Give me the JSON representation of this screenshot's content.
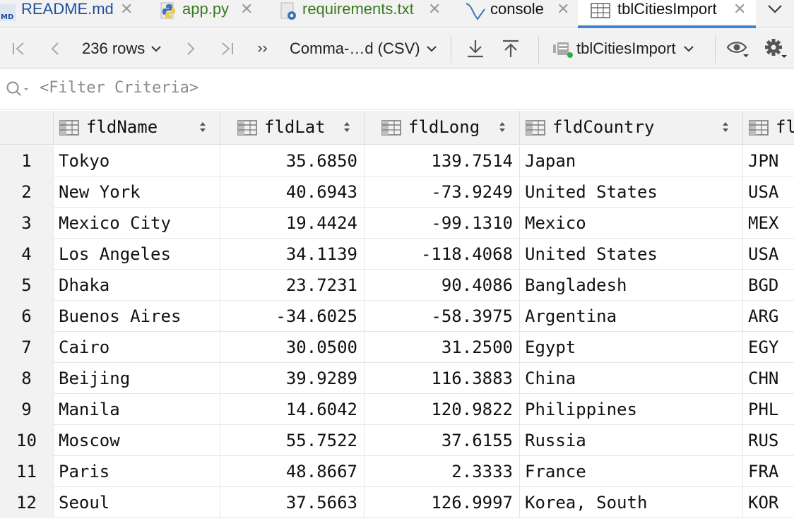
{
  "tabs": [
    {
      "label": "README.md",
      "icon": "markdown-file-icon",
      "color": "#1f4e9a"
    },
    {
      "label": "app.py",
      "icon": "python-file-icon",
      "color": "#3a7a1f"
    },
    {
      "label": "requirements.txt",
      "icon": "requirements-file-icon",
      "color": "#3a7a1f"
    },
    {
      "label": "console",
      "icon": "console-icon",
      "color": "#111111"
    },
    {
      "label": "tblCitiesImport",
      "icon": "table-icon",
      "color": "#111111",
      "active": true
    }
  ],
  "toolbar": {
    "row_count": "236 rows",
    "format": "Comma-…d (CSV)",
    "datasource": "tblCitiesImport"
  },
  "filter": {
    "placeholder": "<Filter Criteria>"
  },
  "columns": [
    {
      "name": "fldName"
    },
    {
      "name": "fldLat"
    },
    {
      "name": "fldLong"
    },
    {
      "name": "fldCountry"
    },
    {
      "name": "fl"
    }
  ],
  "rows": [
    {
      "n": "1",
      "name": "Tokyo",
      "lat": "35.6850",
      "long": "139.7514",
      "country": "Japan",
      "iso": "JPN"
    },
    {
      "n": "2",
      "name": "New York",
      "lat": "40.6943",
      "long": "-73.9249",
      "country": "United States",
      "iso": "USA"
    },
    {
      "n": "3",
      "name": "Mexico City",
      "lat": "19.4424",
      "long": "-99.1310",
      "country": "Mexico",
      "iso": "MEX"
    },
    {
      "n": "4",
      "name": "Los Angeles",
      "lat": "34.1139",
      "long": "-118.4068",
      "country": "United States",
      "iso": "USA"
    },
    {
      "n": "5",
      "name": "Dhaka",
      "lat": "23.7231",
      "long": "90.4086",
      "country": "Bangladesh",
      "iso": "BGD"
    },
    {
      "n": "6",
      "name": "Buenos Aires",
      "lat": "-34.6025",
      "long": "-58.3975",
      "country": "Argentina",
      "iso": "ARG"
    },
    {
      "n": "7",
      "name": "Cairo",
      "lat": "30.0500",
      "long": "31.2500",
      "country": "Egypt",
      "iso": "EGY"
    },
    {
      "n": "8",
      "name": "Beijing",
      "lat": "39.9289",
      "long": "116.3883",
      "country": "China",
      "iso": "CHN"
    },
    {
      "n": "9",
      "name": "Manila",
      "lat": "14.6042",
      "long": "120.9822",
      "country": "Philippines",
      "iso": "PHL"
    },
    {
      "n": "10",
      "name": "Moscow",
      "lat": "55.7522",
      "long": "37.6155",
      "country": "Russia",
      "iso": "RUS"
    },
    {
      "n": "11",
      "name": "Paris",
      "lat": "48.8667",
      "long": "2.3333",
      "country": "France",
      "iso": "FRA"
    },
    {
      "n": "12",
      "name": "Seoul",
      "lat": "37.5663",
      "long": "126.9997",
      "country": "Korea, South",
      "iso": "KOR"
    }
  ],
  "colors": {
    "accent": "#4083c9",
    "panel": "#f2f2f2",
    "status_dot": "#2eae4a"
  }
}
